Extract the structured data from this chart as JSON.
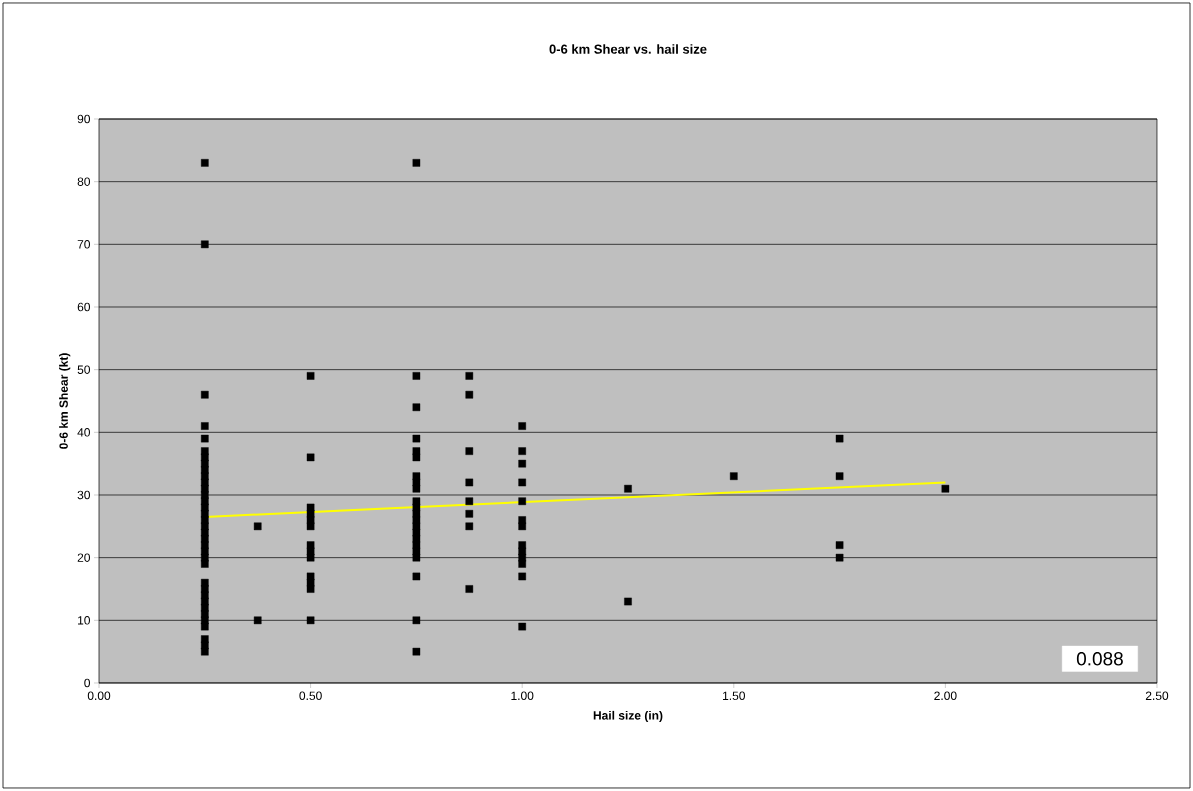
{
  "chart_data": {
    "type": "scatter",
    "title": "0-6 km Shear vs. hail size",
    "xlabel": "Hail size (in)",
    "ylabel": "0-6 km Shear (kt)",
    "xlim": [
      0,
      2.5
    ],
    "ylim": [
      0,
      90
    ],
    "xticks": [
      {
        "value": 0,
        "label": "0.00"
      },
      {
        "value": 0.5,
        "label": "0.50"
      },
      {
        "value": 1,
        "label": "1.00"
      },
      {
        "value": 1.5,
        "label": "1.50"
      },
      {
        "value": 2,
        "label": "2.00"
      },
      {
        "value": 2.5,
        "label": "2.50"
      }
    ],
    "yticks": [
      0,
      10,
      20,
      30,
      40,
      50,
      60,
      70,
      80,
      90
    ],
    "grid": "y",
    "annotations": [
      "0.088"
    ],
    "series": [
      {
        "marker": "square",
        "color": "#000000",
        "x": [
          0.25,
          0.25,
          0.25,
          0.25,
          0.25,
          0.25,
          0.25,
          0.25,
          0.25,
          0.25,
          0.25,
          0.25,
          0.25,
          0.25,
          0.25,
          0.25,
          0.25,
          0.25,
          0.25,
          0.25,
          0.25,
          0.25,
          0.25,
          0.25,
          0.25,
          0.25,
          0.25,
          0.25,
          0.25,
          0.25,
          0.25,
          0.25,
          0.25,
          0.25,
          0.25,
          0.375,
          0.375,
          0.5,
          0.5,
          0.5,
          0.5,
          0.5,
          0.5,
          0.5,
          0.5,
          0.5,
          0.5,
          0.5,
          0.5,
          0.5,
          0.75,
          0.75,
          0.75,
          0.75,
          0.75,
          0.75,
          0.75,
          0.75,
          0.75,
          0.75,
          0.75,
          0.75,
          0.75,
          0.75,
          0.75,
          0.75,
          0.75,
          0.75,
          0.75,
          0.75,
          0.75,
          0.75,
          0.875,
          0.875,
          0.875,
          0.875,
          0.875,
          0.875,
          0.875,
          0.875,
          1,
          1,
          1,
          1,
          1,
          1,
          1,
          1,
          1,
          1,
          1,
          1,
          1,
          1.25,
          1.25,
          1.5,
          1.75,
          1.75,
          1.75,
          1.75,
          2
        ],
        "values": [
          83,
          70,
          46,
          41,
          39,
          37,
          36,
          35,
          34,
          33,
          32,
          31,
          30,
          29,
          28,
          27,
          26,
          25,
          24,
          23,
          22,
          21,
          20,
          19,
          16,
          15,
          14,
          13,
          12,
          11,
          10,
          9,
          7,
          6,
          5,
          25,
          10,
          49,
          36,
          28,
          27,
          26,
          25,
          22,
          21,
          20,
          17,
          16,
          15,
          10,
          83,
          49,
          44,
          39,
          37,
          36,
          33,
          32,
          31,
          29,
          28,
          27,
          26,
          25,
          24,
          23,
          22,
          21,
          20,
          17,
          10,
          5,
          49,
          46,
          37,
          32,
          29,
          27,
          25,
          15,
          41,
          37,
          35,
          32,
          29,
          26,
          25,
          22,
          21,
          20,
          19,
          17,
          9,
          31,
          13,
          33,
          39,
          33,
          22,
          20,
          31
        ]
      },
      {
        "type": "line",
        "marker": "none",
        "color": "#ffff00",
        "x": [
          0.25,
          2.0
        ],
        "values": [
          26.5,
          32
        ]
      }
    ]
  }
}
